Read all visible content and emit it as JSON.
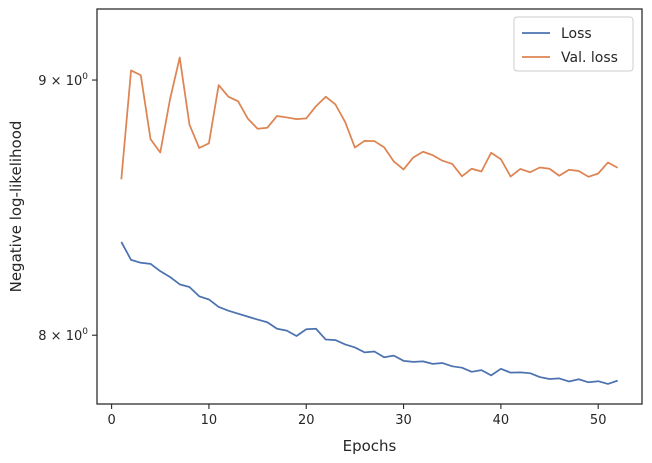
{
  "chart_data": {
    "type": "line",
    "title": "",
    "xlabel": "Epochs",
    "ylabel": "Negative log-likelihood",
    "yscale": "log",
    "xlim": [
      -1.5,
      54.5
    ],
    "ylim": [
      7.75,
      9.3
    ],
    "x_ticks": [
      0,
      10,
      20,
      30,
      40,
      50
    ],
    "x_tick_labels": [
      "0",
      "10",
      "20",
      "30",
      "40",
      "50"
    ],
    "y_ticks": [
      8,
      9
    ],
    "y_tick_base_labels": [
      "8",
      "9"
    ],
    "y_tick_sci_suffix": "× 10",
    "y_tick_exponent": "0",
    "grid": false,
    "legend": {
      "position": "top-right"
    },
    "x": [
      1,
      2,
      3,
      4,
      5,
      6,
      7,
      8,
      9,
      10,
      11,
      12,
      13,
      14,
      15,
      16,
      17,
      18,
      19,
      20,
      21,
      22,
      23,
      24,
      25,
      26,
      27,
      28,
      29,
      30,
      31,
      32,
      33,
      34,
      35,
      36,
      37,
      38,
      39,
      40,
      41,
      42,
      43,
      44,
      45,
      46,
      47,
      48,
      49,
      50,
      51,
      52
    ],
    "series": [
      {
        "name": "Loss",
        "color": "#4c72b0",
        "values": [
          8.352,
          8.283,
          8.272,
          8.268,
          8.24,
          8.218,
          8.19,
          8.18,
          8.145,
          8.133,
          8.105,
          8.091,
          8.08,
          8.069,
          8.058,
          8.048,
          8.024,
          8.017,
          7.997,
          8.022,
          8.024,
          7.984,
          7.982,
          7.966,
          7.955,
          7.937,
          7.94,
          7.919,
          7.925,
          7.906,
          7.902,
          7.904,
          7.895,
          7.898,
          7.886,
          7.881,
          7.866,
          7.872,
          7.853,
          7.877,
          7.863,
          7.864,
          7.861,
          7.847,
          7.84,
          7.842,
          7.831,
          7.839,
          7.828,
          7.832,
          7.822,
          7.834
        ]
      },
      {
        "name": "Val. loss",
        "color": "#dd8452",
        "values": [
          8.597,
          9.04,
          9.02,
          8.758,
          8.704,
          8.92,
          9.094,
          8.817,
          8.722,
          8.741,
          8.979,
          8.931,
          8.912,
          8.841,
          8.8,
          8.804,
          8.852,
          8.846,
          8.839,
          8.842,
          8.892,
          8.931,
          8.899,
          8.827,
          8.724,
          8.751,
          8.75,
          8.725,
          8.668,
          8.636,
          8.684,
          8.707,
          8.693,
          8.671,
          8.658,
          8.609,
          8.639,
          8.628,
          8.703,
          8.677,
          8.608,
          8.638,
          8.625,
          8.644,
          8.639,
          8.611,
          8.635,
          8.63,
          8.607,
          8.62,
          8.664,
          8.643
        ]
      }
    ]
  }
}
